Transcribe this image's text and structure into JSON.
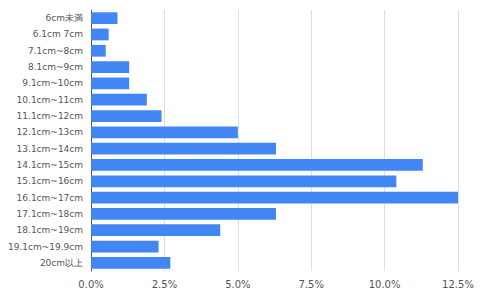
{
  "chart_data": {
    "type": "bar",
    "orientation": "horizontal",
    "categories": [
      "6cm未満",
      "6.1cm 7cm",
      "7.1cm~8cm",
      "8.1cm~9cm",
      "9.1cm~10cm",
      "10.1cm~11cm",
      "11.1cm~12cm",
      "12.1cm~13cm",
      "13.1cm~14cm",
      "14.1cm~15cm",
      "15.1cm~16cm",
      "16.1cm~17cm",
      "17.1cm~18cm",
      "18.1cm~19cm",
      "19.1cm~19.9cm",
      "20cm以上"
    ],
    "values": [
      0.009,
      0.006,
      0.005,
      0.013,
      0.013,
      0.019,
      0.024,
      0.05,
      0.063,
      0.113,
      0.104,
      0.125,
      0.063,
      0.044,
      0.023,
      0.027
    ],
    "color": "#4285f4",
    "xlim": [
      0,
      0.125
    ],
    "xticks": [
      {
        "value": 0.0,
        "label": "0.0%"
      },
      {
        "value": 0.025,
        "label": "2.5%"
      },
      {
        "value": 0.05,
        "label": "5.0%"
      },
      {
        "value": 0.075,
        "label": "7.5%"
      },
      {
        "value": 0.1,
        "label": "10.0%"
      },
      {
        "value": 0.125,
        "label": "12.5%"
      }
    ],
    "grid": true
  }
}
